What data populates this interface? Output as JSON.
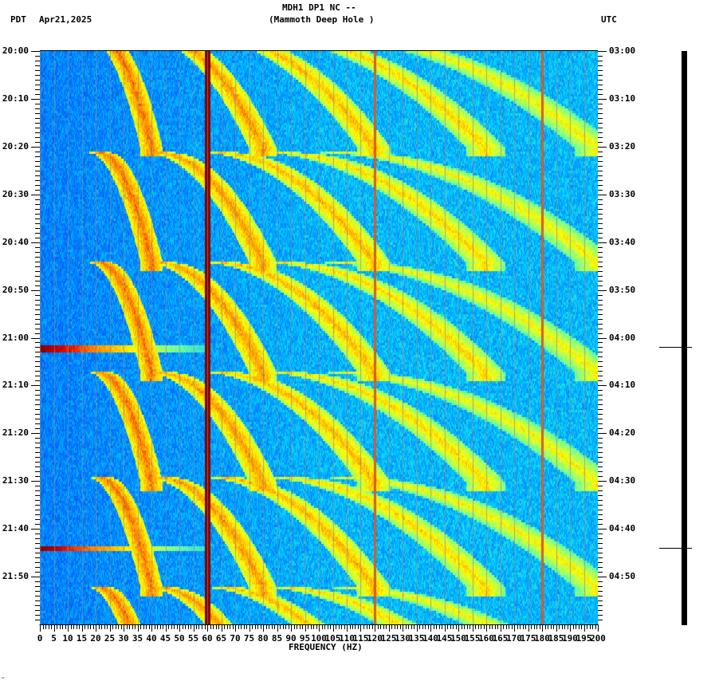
{
  "header": {
    "title_line1": "MDH1 DP1 NC --",
    "title_line2": "(Mammoth Deep Hole )",
    "left_timezone": "PDT",
    "date": "Apr21,2025",
    "right_timezone": "UTC"
  },
  "footer": {
    "mark": "‴"
  },
  "colors": {
    "background": "#ffffff",
    "colormap_low": "#0050ff",
    "colormap_mid": "#00e0ff",
    "colormap_high": "#ffff00",
    "colormap_peak": "#8b0000",
    "gridline": "#8a8a8a",
    "axis": "#000000"
  },
  "chart_data": {
    "type": "heatmap",
    "title": "MDH1 DP1 NC -- (Mammoth Deep Hole )",
    "xlabel": "FREQUENCY (HZ)",
    "ylabel_left": "PDT",
    "ylabel_right": "UTC",
    "xlim": [
      0,
      200
    ],
    "x_ticks": [
      0,
      5,
      10,
      15,
      20,
      25,
      30,
      35,
      40,
      45,
      50,
      55,
      60,
      65,
      70,
      75,
      80,
      85,
      90,
      95,
      100,
      105,
      110,
      115,
      120,
      125,
      130,
      135,
      140,
      145,
      150,
      155,
      160,
      165,
      170,
      175,
      180,
      185,
      190,
      195,
      200
    ],
    "y_ticks_left": [
      "20:00",
      "20:10",
      "20:20",
      "20:30",
      "20:40",
      "20:50",
      "21:00",
      "21:10",
      "21:20",
      "21:30",
      "21:40",
      "21:50"
    ],
    "y_ticks_right": [
      "03:00",
      "03:10",
      "03:20",
      "03:30",
      "03:40",
      "03:50",
      "04:00",
      "04:10",
      "04:20",
      "04:30",
      "04:40",
      "04:50"
    ],
    "time_range_pdt": [
      "20:00",
      "22:00"
    ],
    "minor_tick_minutes": 1,
    "persistent_lines_hz": [
      {
        "freq": 60,
        "intensity": "peak",
        "note": "strong 60 Hz power-line line"
      },
      {
        "freq": 120,
        "intensity": "moderate"
      },
      {
        "freq": 180,
        "intensity": "moderate"
      }
    ],
    "broadband_events": [
      {
        "time_pdt": "21:02",
        "freq_range": [
          0,
          60
        ],
        "intensity": "peak at low freq"
      },
      {
        "time_pdt": "21:44",
        "freq_range": [
          0,
          60
        ],
        "intensity": "peak at low freq"
      }
    ],
    "gliding_harmonics": {
      "description": "Repeating upward-sweeping curved tones (approx 22-25 min period), harmonic families between ~20 and ~130 Hz",
      "cycle_starts_pdt": [
        "19:57",
        "20:21",
        "20:44",
        "21:07",
        "21:29",
        "21:52"
      ],
      "cycle_length_min": 23,
      "harmonic_start_freqs_hz": [
        21,
        42,
        63,
        84,
        105
      ],
      "sweep_ratio": 1.9
    },
    "background_level": "blue/cyan noise, stronger cyan above 100 Hz"
  },
  "helicorder": {
    "event_marks_pdt": [
      "21:02",
      "21:44"
    ]
  }
}
